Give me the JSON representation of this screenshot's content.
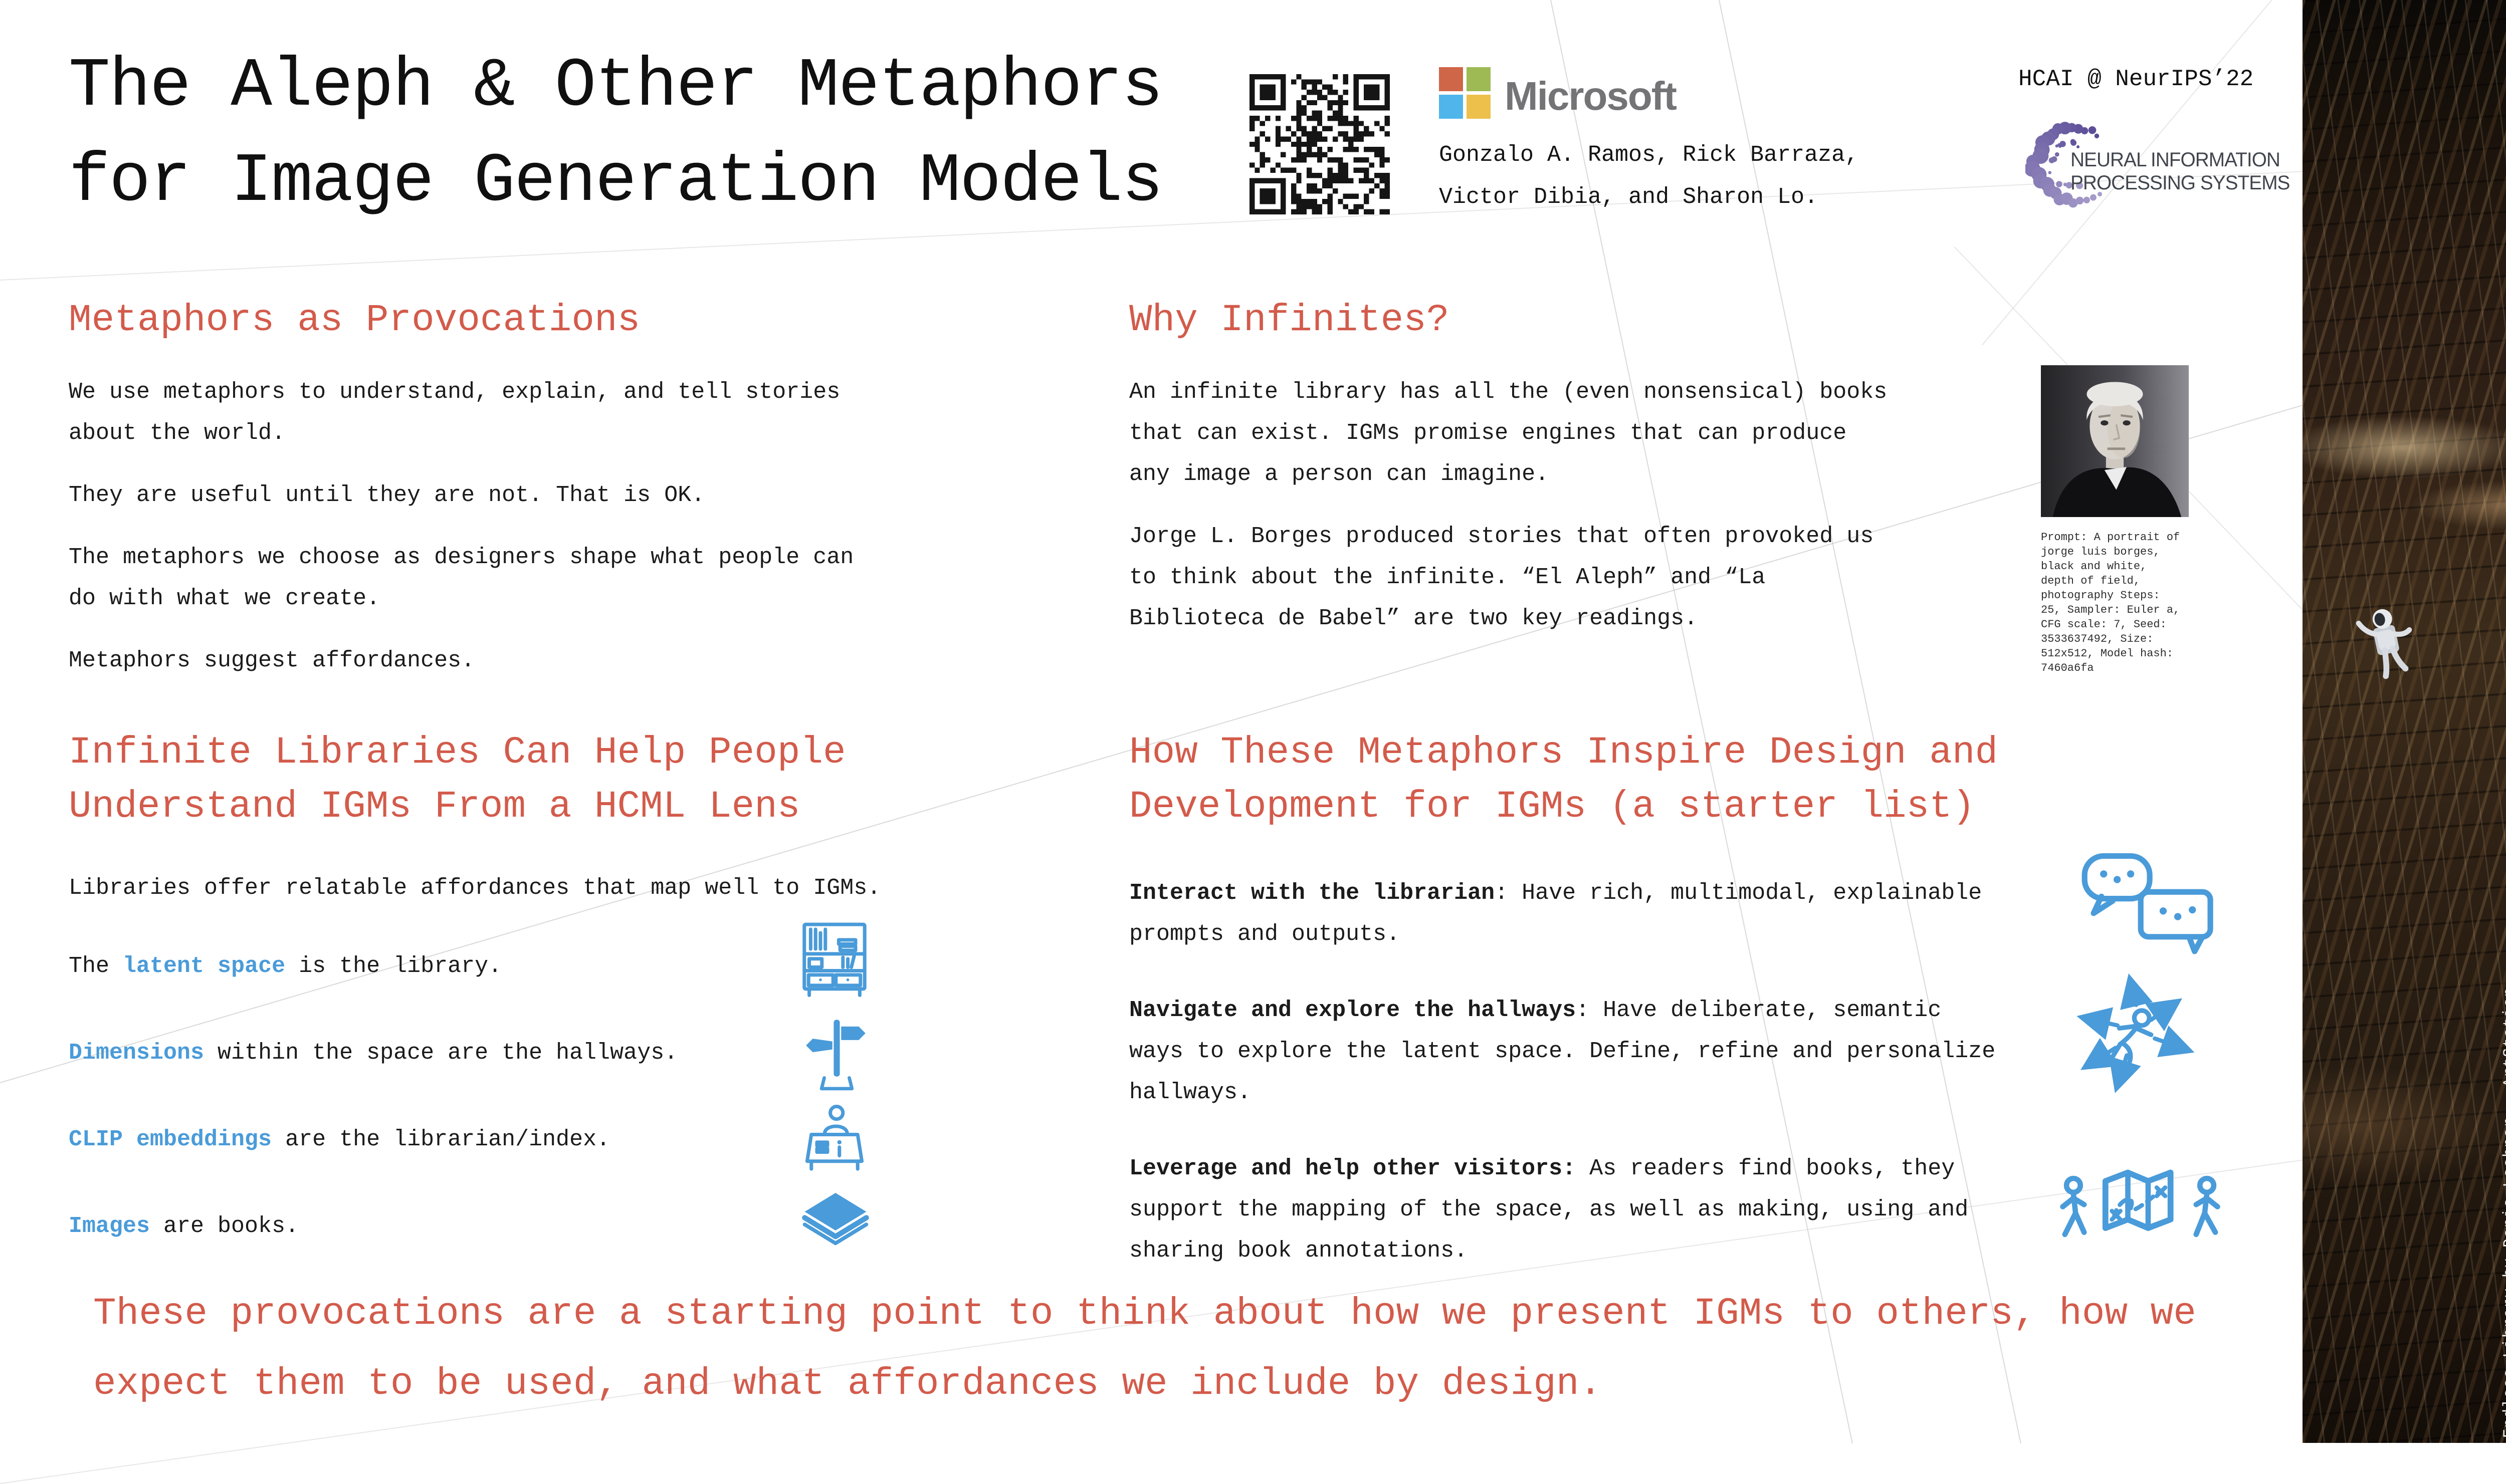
{
  "poster": {
    "title_lines": [
      "The Aleph & Other Metaphors",
      "for Image Generation Models"
    ],
    "event_badge": "HCAI @ NeurIPS’22",
    "microsoft_wordmark": "Microsoft",
    "authors_lines": [
      "Gonzalo A. Ramos, Rick Barraza,",
      "Victor Dibia, and Sharon Lo."
    ],
    "neurips_text_lines": [
      "NEURAL INFORMATION",
      "PROCESSING SYSTEMS"
    ],
    "header_icons": [
      "qr-code",
      "microsoft-logo",
      "neurips-logo"
    ]
  },
  "colors": {
    "accent_red": "#d35b4b",
    "accent_blue": "#4a9bd9",
    "text_dark": "#1b1b1b",
    "ms_orange": "#cf6647",
    "ms_green": "#9dba55",
    "ms_blue": "#50b5ea",
    "ms_yellow": "#edc04b",
    "ms_gray": "#747476",
    "neurips_purple": "#6a5a9e"
  },
  "sections": {
    "provocations": {
      "heading": "Metaphors as Provocations",
      "paragraphs": [
        "We use metaphors to understand, explain, and tell stories about the world.",
        "They are useful until they are not. That is OK.",
        "The metaphors we choose as designers shape what people can do with what we create.",
        "Metaphors suggest affordances."
      ]
    },
    "infinites": {
      "heading": "Why Infinites?",
      "paragraphs": [
        "An infinite library has all the (even nonsensical) books that can exist. IGMs promise engines that can produce any image a person can imagine.",
        "Jorge L. Borges produced stories that often provoked us to think about the infinite. “El Aleph” and “La Biblioteca de Babel” are two key readings."
      ],
      "portrait_caption": "Prompt: A portrait of jorge luis borges, black and white, depth of field, photography Steps: 25, Sampler: Euler a, CFG scale: 7, Seed: 3533637492, Size: 512x512, Model hash: 7460a6fa"
    },
    "libraries": {
      "heading_lines": [
        "Infinite Libraries Can Help People",
        "Understand IGMs From a HCML Lens"
      ],
      "intro": "Libraries offer relatable affordances that map well to IGMs.",
      "mappings": [
        {
          "pre": "The ",
          "key": "latent space",
          "post": " is the library.",
          "icon": "bookshelf-icon"
        },
        {
          "pre": "",
          "key": "Dimensions",
          "post": " within the space are the hallways.",
          "icon": "signpost-icon"
        },
        {
          "pre": "",
          "key": "CLIP embeddings",
          "post": " are the librarian/index.",
          "icon": "librarian-desk-icon"
        },
        {
          "pre": "",
          "key": "Images",
          "post": " are books.",
          "icon": "book-icon"
        }
      ]
    },
    "inspire": {
      "heading_lines": [
        "How These Metaphors Inspire Design and",
        "Development for IGMs (a starter list)"
      ],
      "items": [
        {
          "lead": "Interact with the librarian",
          "rest": ": Have rich, multimodal, explainable prompts and outputs.",
          "icon": "chat-bubbles-icon"
        },
        {
          "lead": "Navigate and explore the hallways",
          "rest": ": Have deliberate, semantic ways to explore the latent space. Define, refine and personalize hallways.",
          "icon": "explore-arrows-icon"
        },
        {
          "lead": "Leverage and help other visitors:",
          "rest": " As readers find books, they support the mapping of the space, as well as making, using and sharing book annotations.",
          "icon": "visitors-map-icon"
        }
      ]
    }
  },
  "footer": {
    "lines": [
      "These provocations are a starting point to think about how we present IGMs to others, how we",
      "expect them to be used, and what affordances we include by design."
    ]
  },
  "art_strip": {
    "credit": "Endless Library by Denis Loebner - ArtStation"
  }
}
